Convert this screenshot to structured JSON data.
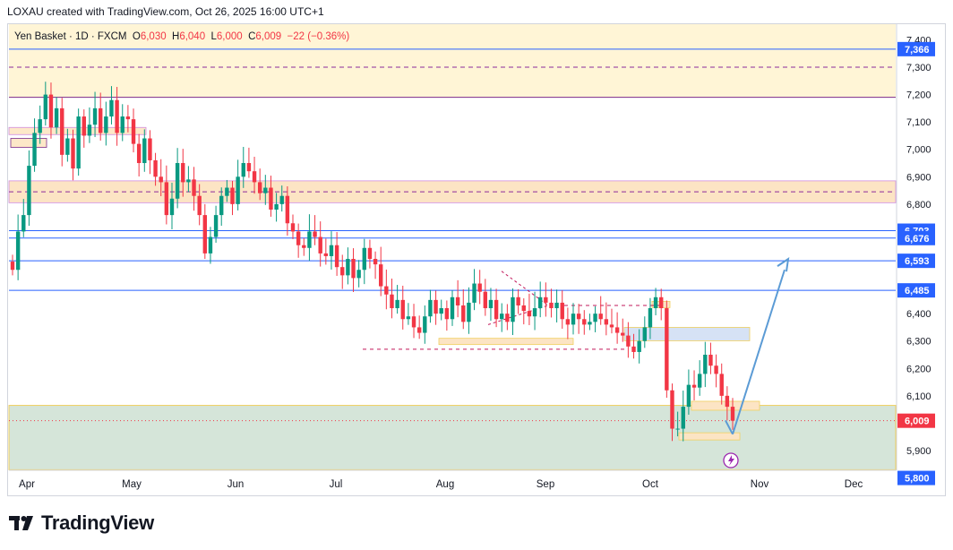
{
  "header": {
    "attribution": "LOXAU created with TradingView.com, Oct 26, 2025 16:00 UTC+1"
  },
  "legend": {
    "symbol": "Yen Basket · 1D · FXCM",
    "o_label": "O",
    "o": "6,030",
    "h_label": "H",
    "h": "6,040",
    "l_label": "L",
    "l": "6,000",
    "c_label": "C",
    "c": "6,009",
    "change": "−22 (−0.36%)"
  },
  "brand": {
    "name": "TradingView"
  },
  "colors": {
    "up": "#089981",
    "down": "#f23645",
    "line_blue": "#2962ff",
    "arrow": "#5b9bd5",
    "zone_yellow": "#fff5d6",
    "zone_green": "#d5e5d9",
    "zone_blue": "#d6e2f5",
    "zone_orange": "#fce4c4"
  },
  "chart_data": {
    "type": "candlestick",
    "symbol": "Yen Basket",
    "timeframe": "1D",
    "ylim": [
      5860,
      7400
    ],
    "y_ticks": [
      "7,400",
      "7,300",
      "7,200",
      "7,100",
      "7,000",
      "6,900",
      "6,800",
      "6,600",
      "6,400",
      "6,300",
      "6,200",
      "6,100",
      "5,900"
    ],
    "x_ticks": [
      "Apr",
      "May",
      "Jun",
      "Jul",
      "Aug",
      "Sep",
      "Oct",
      "Nov",
      "Dec"
    ],
    "price_labels": [
      {
        "value": 7366,
        "text": "7,366",
        "color": "#2962ff"
      },
      {
        "value": 6703,
        "text": "6,703",
        "color": "#2962ff"
      },
      {
        "value": 6676,
        "text": "6,676",
        "color": "#2962ff"
      },
      {
        "value": 6593,
        "text": "6,593",
        "color": "#2962ff"
      },
      {
        "value": 6485,
        "text": "6,485",
        "color": "#2962ff"
      },
      {
        "value": 6009,
        "text": "6,009",
        "color": "#f23645"
      },
      {
        "value": 5800,
        "text": "5,800",
        "color": "#2962ff"
      }
    ],
    "horizontal_levels": [
      7366,
      7190,
      6703,
      6676,
      6593,
      6485
    ],
    "zones": [
      {
        "from": 7190,
        "to": 7400,
        "color": "yellow"
      },
      {
        "from": 6805,
        "to": 6885,
        "color": "orange"
      },
      {
        "from": 5820,
        "to": 6065,
        "color": "green"
      }
    ],
    "closes": [
      6560,
      6700,
      6760,
      6940,
      7060,
      7110,
      7200,
      7080,
      7150,
      6980,
      7040,
      6930,
      7120,
      7050,
      7090,
      7150,
      7060,
      7120,
      7180,
      7060,
      7120,
      7110,
      7020,
      6950,
      7040,
      6960,
      6900,
      6880,
      6760,
      6820,
      6950,
      6880,
      6890,
      6830,
      6760,
      6620,
      6680,
      6760,
      6830,
      6860,
      6800,
      6900,
      6950,
      6920,
      6880,
      6840,
      6860,
      6780,
      6800,
      6830,
      6730,
      6700,
      6650,
      6640,
      6700,
      6680,
      6620,
      6610,
      6650,
      6570,
      6540,
      6600,
      6530,
      6560,
      6640,
      6600,
      6580,
      6500,
      6470,
      6420,
      6450,
      6380,
      6390,
      6350,
      6330,
      6390,
      6450,
      6400,
      6420,
      6380,
      6460,
      6430,
      6370,
      6440,
      6510,
      6480,
      6420,
      6450,
      6380,
      6400,
      6370,
      6460,
      6430,
      6410,
      6390,
      6420,
      6460,
      6440,
      6420,
      6440,
      6380,
      6360,
      6400,
      6380,
      6360,
      6370,
      6400,
      6380,
      6360,
      6350,
      6330,
      6320,
      6280,
      6260,
      6300,
      6350,
      6420,
      6460,
      6420,
      6120,
      5980,
      5980,
      6060,
      6140,
      6130,
      6180,
      6250,
      6210,
      6180,
      6100,
      6060,
      6009
    ],
    "arrow": {
      "from_value": 5960,
      "to_value": 6580,
      "direction": "up"
    }
  }
}
